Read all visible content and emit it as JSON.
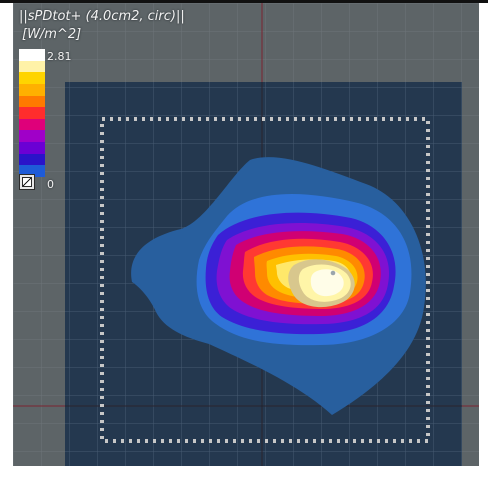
{
  "window": {
    "title": "||sPDtot+ (4.0cm2, circ)||",
    "unit": "[W/m^2]"
  },
  "legend": {
    "max_label": "2.81",
    "min_label": "0",
    "colors": [
      "#ffffff",
      "#fff2a8",
      "#ffd400",
      "#ffb000",
      "#ff7a00",
      "#ff2d2d",
      "#df007a",
      "#a000c8",
      "#6b00d4",
      "#2a13c9",
      "#1e5bd8"
    ],
    "toggle_icon": "colormap-toggle-icon"
  },
  "plot": {
    "background": "#5d6467",
    "panel_color": "#263c54",
    "grid_color": "#2f4460",
    "crosshair_color": "#8a1f2b"
  }
}
